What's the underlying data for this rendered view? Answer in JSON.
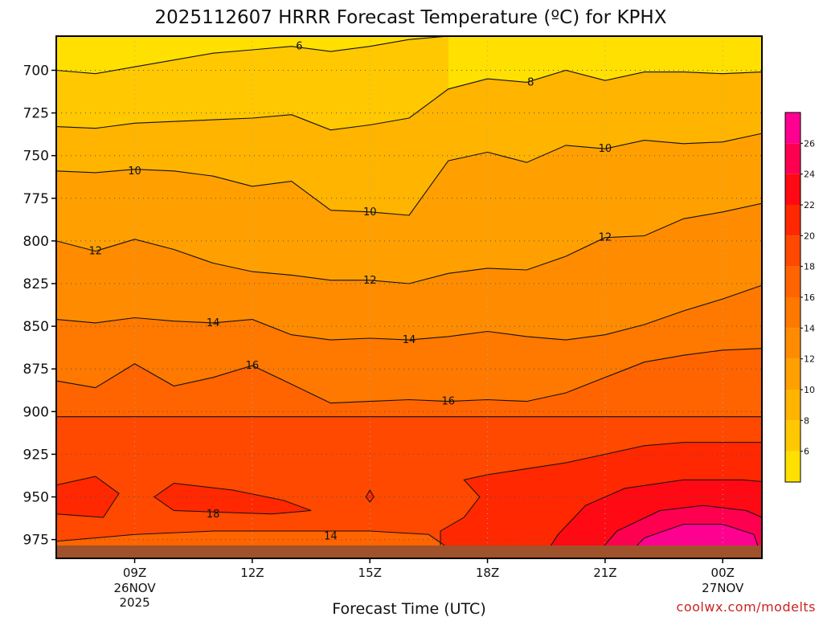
{
  "chart_data": {
    "type": "heatmap",
    "title": "2025112607 HRRR Forecast Temperature (ºC) for KPHX",
    "xlabel": "Forecast Time (UTC)",
    "ylabel": "",
    "credit": "coolwx.com/modelts",
    "x_ticks": [
      {
        "label": "09Z",
        "sub1": "26NOV",
        "sub2": "2025",
        "hour": 9
      },
      {
        "label": "12Z",
        "sub1": "",
        "sub2": "",
        "hour": 12
      },
      {
        "label": "15Z",
        "sub1": "",
        "sub2": "",
        "hour": 15
      },
      {
        "label": "18Z",
        "sub1": "",
        "sub2": "",
        "hour": 18
      },
      {
        "label": "21Z",
        "sub1": "",
        "sub2": "",
        "hour": 21
      },
      {
        "label": "00Z",
        "sub1": "27NOV",
        "sub2": "",
        "hour": 24
      }
    ],
    "xlim": [
      7,
      25
    ],
    "y_ticks": [
      700,
      725,
      750,
      775,
      800,
      825,
      850,
      875,
      900,
      925,
      950,
      975
    ],
    "ylim": [
      680,
      986
    ],
    "y_axis_inverted": true,
    "grid": true,
    "ground_color": "#a0522d",
    "colorbar": {
      "placement": "right",
      "levels": [
        4,
        6,
        8,
        10,
        12,
        14,
        16,
        18,
        20,
        22,
        24,
        26,
        28
      ],
      "tick_labels": [
        "6",
        "8",
        "10",
        "12",
        "14",
        "16",
        "18",
        "20",
        "22",
        "24",
        "26"
      ],
      "colors": [
        "#ffe000",
        "#ffc800",
        "#ffb400",
        "#ffa000",
        "#ff8c00",
        "#ff7800",
        "#ff6400",
        "#ff4800",
        "#ff2800",
        "#ff0a14",
        "#ff0050",
        "#ff0090"
      ]
    },
    "contours": [
      {
        "value": 6,
        "label": "6",
        "points": [
          [
            7,
            700
          ],
          [
            8,
            702
          ],
          [
            9,
            698
          ],
          [
            10,
            694
          ],
          [
            11,
            690
          ],
          [
            12,
            688
          ],
          [
            13,
            686
          ],
          [
            14,
            689
          ],
          [
            15,
            686
          ],
          [
            16,
            682
          ],
          [
            17,
            680
          ]
        ]
      },
      {
        "value": 8,
        "label": "8",
        "points": [
          [
            7,
            733
          ],
          [
            8,
            734
          ],
          [
            9,
            731
          ],
          [
            10,
            730
          ],
          [
            11,
            729
          ],
          [
            12,
            728
          ],
          [
            13,
            726
          ],
          [
            14,
            735
          ],
          [
            15,
            732
          ],
          [
            16,
            728
          ],
          [
            17,
            711
          ],
          [
            18,
            705
          ],
          [
            19,
            707
          ],
          [
            20,
            700
          ],
          [
            21,
            706
          ],
          [
            22,
            701
          ],
          [
            23,
            701
          ],
          [
            24,
            702
          ],
          [
            25,
            701
          ]
        ]
      },
      {
        "value": 10,
        "label": "10",
        "points": [
          [
            7,
            759
          ],
          [
            8,
            760
          ],
          [
            9,
            758
          ],
          [
            10,
            759
          ],
          [
            11,
            762
          ],
          [
            12,
            768
          ],
          [
            13,
            765
          ],
          [
            14,
            782
          ],
          [
            15,
            783
          ],
          [
            16,
            785
          ],
          [
            17,
            753
          ],
          [
            18,
            748
          ],
          [
            19,
            754
          ],
          [
            20,
            744
          ],
          [
            21,
            746
          ],
          [
            22,
            741
          ],
          [
            23,
            743
          ],
          [
            24,
            742
          ],
          [
            25,
            737
          ]
        ]
      },
      {
        "value": 12,
        "label": "12",
        "points": [
          [
            7,
            800
          ],
          [
            8,
            806
          ],
          [
            9,
            799
          ],
          [
            10,
            805
          ],
          [
            11,
            813
          ],
          [
            12,
            818
          ],
          [
            13,
            820
          ],
          [
            14,
            823
          ],
          [
            15,
            823
          ],
          [
            16,
            825
          ],
          [
            17,
            819
          ],
          [
            18,
            816
          ],
          [
            19,
            817
          ],
          [
            20,
            809
          ],
          [
            21,
            798
          ],
          [
            22,
            797
          ],
          [
            23,
            787
          ],
          [
            24,
            783
          ],
          [
            25,
            778
          ]
        ]
      },
      {
        "value": 14,
        "label": "14",
        "points": [
          [
            7,
            846
          ],
          [
            8,
            848
          ],
          [
            9,
            845
          ],
          [
            10,
            847
          ],
          [
            11,
            848
          ],
          [
            12,
            846
          ],
          [
            13,
            855
          ],
          [
            14,
            858
          ],
          [
            15,
            857
          ],
          [
            16,
            858
          ],
          [
            17,
            856
          ],
          [
            18,
            853
          ],
          [
            19,
            856
          ],
          [
            20,
            858
          ],
          [
            21,
            855
          ],
          [
            22,
            849
          ],
          [
            23,
            841
          ],
          [
            24,
            834
          ],
          [
            25,
            826
          ]
        ]
      },
      {
        "value": 16,
        "label": "16",
        "points": [
          [
            7,
            882
          ],
          [
            8,
            886
          ],
          [
            9,
            872
          ],
          [
            10,
            885
          ],
          [
            11,
            880
          ],
          [
            12,
            873
          ],
          [
            13,
            884
          ],
          [
            14,
            895
          ],
          [
            15,
            894
          ],
          [
            16,
            893
          ],
          [
            17,
            894
          ],
          [
            18,
            893
          ],
          [
            19,
            894
          ],
          [
            20,
            889
          ],
          [
            21,
            880
          ],
          [
            22,
            871
          ],
          [
            23,
            867
          ],
          [
            24,
            864
          ],
          [
            25,
            863
          ]
        ]
      },
      {
        "value": 18,
        "label": "18",
        "points": [
          [
            7,
            903
          ],
          [
            25,
            903
          ]
        ]
      }
    ],
    "contour_labels": [
      {
        "value": "6",
        "x": 13.2,
        "y": 686
      },
      {
        "value": "8",
        "x": 19.1,
        "y": 707
      },
      {
        "value": "10",
        "x": 9.0,
        "y": 759
      },
      {
        "value": "10",
        "x": 21.0,
        "y": 746
      },
      {
        "value": "10",
        "x": 15.0,
        "y": 783
      },
      {
        "value": "12",
        "x": 8.0,
        "y": 806
      },
      {
        "value": "12",
        "x": 21.0,
        "y": 798
      },
      {
        "value": "12",
        "x": 15.0,
        "y": 823
      },
      {
        "value": "14",
        "x": 11.0,
        "y": 848
      },
      {
        "value": "14",
        "x": 16.0,
        "y": 858
      },
      {
        "value": "14",
        "x": 14.0,
        "y": 973
      },
      {
        "value": "16",
        "x": 12.0,
        "y": 873
      },
      {
        "value": "16",
        "x": 17.0,
        "y": 894
      },
      {
        "value": "18",
        "x": 11.0,
        "y": 960
      }
    ]
  }
}
